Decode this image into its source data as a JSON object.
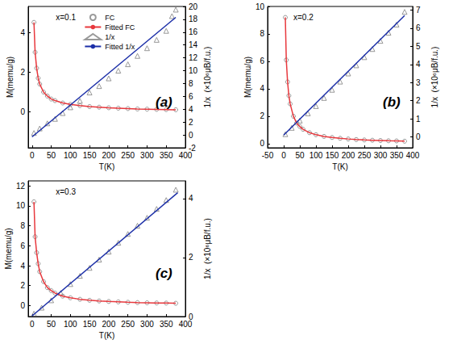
{
  "chart_data": [
    {
      "type": "scatter",
      "title": "(a)",
      "annotations": [
        "x=0.1"
      ],
      "x_label": "T(K)",
      "y_label": "M(memu/g)",
      "y2_label": "1/x  (×10⁶μB/f.u.)",
      "xlim": [
        -10,
        400
      ],
      "xticks": [
        0,
        50,
        100,
        150,
        200,
        250,
        300,
        350,
        400
      ],
      "ylim": [
        -1.8,
        5.3
      ],
      "yticks": [
        0,
        2,
        4
      ],
      "y2lim": [
        -2,
        20
      ],
      "y2ticks": [
        -2,
        0,
        2,
        4,
        6,
        8,
        10,
        12,
        14,
        16,
        18,
        20
      ],
      "grid": false,
      "legend": "upper left",
      "series": [
        {
          "name": "FC",
          "type": "scatter",
          "marker": "circle",
          "color": "#808080",
          "x": [
            5,
            8,
            12,
            16,
            20,
            30,
            40,
            50,
            60,
            80,
            100,
            125,
            150,
            175,
            200,
            225,
            250,
            275,
            300,
            325,
            350,
            375
          ],
          "values": [
            4.5,
            3.0,
            2.2,
            1.7,
            1.4,
            1.0,
            0.8,
            0.65,
            0.57,
            0.45,
            0.38,
            0.32,
            0.27,
            0.24,
            0.21,
            0.19,
            0.17,
            0.15,
            0.14,
            0.13,
            0.12,
            0.11
          ]
        },
        {
          "name": "Fitted FC",
          "type": "line",
          "line_style": "solid",
          "color": "#e8383d",
          "x": [
            5,
            8,
            12,
            16,
            20,
            30,
            40,
            50,
            60,
            80,
            100,
            125,
            150,
            175,
            200,
            225,
            250,
            275,
            300,
            325,
            350,
            375
          ],
          "values": [
            4.5,
            3.0,
            2.2,
            1.7,
            1.4,
            1.0,
            0.8,
            0.65,
            0.57,
            0.45,
            0.38,
            0.32,
            0.27,
            0.24,
            0.21,
            0.19,
            0.17,
            0.15,
            0.14,
            0.13,
            0.12,
            0.11
          ]
        },
        {
          "name": "1/x",
          "type": "scatter",
          "marker": "triangle",
          "color": "#808080",
          "axis": "y2",
          "x": [
            5,
            20,
            40,
            60,
            80,
            100,
            125,
            150,
            175,
            200,
            225,
            250,
            275,
            300,
            325,
            350,
            365,
            375
          ],
          "values": [
            0.3,
            1.0,
            1.8,
            2.5,
            3.4,
            4.3,
            5.3,
            6.6,
            7.6,
            8.8,
            10.0,
            11.0,
            12.3,
            13.5,
            14.8,
            16.2,
            18.5,
            19.5
          ]
        },
        {
          "name": "Fitted 1/x",
          "type": "line",
          "line_style": "solid",
          "color": "#1c2fa8",
          "axis": "y2",
          "x": [
            0,
            375
          ],
          "values": [
            -0.3,
            18.3
          ]
        }
      ]
    },
    {
      "type": "scatter",
      "title": "(b)",
      "annotations": [
        "x=0.2"
      ],
      "x_label": "T(K)",
      "y_label": "M(memu/g)",
      "y2_label": "1/x  (×10⁶μB/f.u.)",
      "xlim": [
        -50,
        400
      ],
      "xticks": [
        -50,
        0,
        50,
        100,
        150,
        200,
        250,
        300,
        350,
        400
      ],
      "ylim": [
        -0.3,
        10
      ],
      "yticks": [
        0,
        2,
        4,
        6,
        8,
        10
      ],
      "y2lim": [
        -0.6,
        7.2
      ],
      "y2ticks": [
        0,
        1,
        2,
        3,
        4,
        5,
        6,
        7
      ],
      "grid": false,
      "series": [
        {
          "name": "FC",
          "type": "scatter",
          "marker": "circle",
          "color": "#808080",
          "x": [
            5,
            8,
            12,
            16,
            20,
            30,
            40,
            50,
            60,
            80,
            100,
            125,
            150,
            175,
            200,
            225,
            250,
            275,
            300,
            325,
            350,
            375
          ],
          "values": [
            9.2,
            6.1,
            4.5,
            3.5,
            2.9,
            2.0,
            1.5,
            1.25,
            1.05,
            0.8,
            0.65,
            0.53,
            0.45,
            0.39,
            0.34,
            0.3,
            0.27,
            0.25,
            0.23,
            0.21,
            0.2,
            0.18
          ]
        },
        {
          "name": "Fitted FC",
          "type": "line",
          "line_style": "solid",
          "color": "#e8383d",
          "x": [
            5,
            8,
            12,
            16,
            20,
            30,
            40,
            50,
            60,
            80,
            100,
            125,
            150,
            175,
            200,
            225,
            250,
            275,
            300,
            325,
            350,
            375
          ],
          "values": [
            9.2,
            6.1,
            4.5,
            3.5,
            2.9,
            2.0,
            1.5,
            1.25,
            1.05,
            0.8,
            0.65,
            0.53,
            0.45,
            0.39,
            0.34,
            0.3,
            0.27,
            0.25,
            0.23,
            0.21,
            0.2,
            0.18
          ]
        },
        {
          "name": "1/x",
          "type": "scatter",
          "marker": "triangle",
          "color": "#808080",
          "axis": "y2",
          "x": [
            5,
            25,
            50,
            75,
            100,
            125,
            150,
            175,
            200,
            225,
            250,
            275,
            300,
            325,
            350,
            375
          ],
          "values": [
            0.15,
            0.5,
            0.9,
            1.3,
            1.7,
            2.15,
            2.6,
            3.05,
            3.5,
            3.95,
            4.4,
            4.85,
            5.3,
            5.75,
            6.2,
            6.9
          ]
        },
        {
          "name": "Fitted 1/x",
          "type": "line",
          "line_style": "solid",
          "color": "#1c2fa8",
          "axis": "y2",
          "x": [
            0,
            375
          ],
          "values": [
            0.1,
            6.7
          ]
        }
      ]
    },
    {
      "type": "scatter",
      "title": "(c)",
      "annotations": [
        "x=0.3"
      ],
      "x_label": "T(K)",
      "y_label": "M(memu/g)",
      "y2_label": "1/x  (×10⁶μB/f.u.)",
      "xlim": [
        -10,
        400
      ],
      "xticks": [
        0,
        50,
        100,
        150,
        200,
        250,
        300,
        350,
        400
      ],
      "ylim": [
        -1.1,
        12.5
      ],
      "yticks": [
        0,
        2,
        4,
        6,
        8,
        10,
        12
      ],
      "y2lim": [
        0,
        4.6
      ],
      "y2ticks": [
        0,
        2,
        4
      ],
      "grid": false,
      "series": [
        {
          "name": "FC",
          "type": "scatter",
          "marker": "circle",
          "color": "#808080",
          "x": [
            5,
            8,
            12,
            16,
            20,
            30,
            40,
            50,
            60,
            80,
            100,
            125,
            150,
            175,
            200,
            225,
            250,
            275,
            300,
            325,
            350,
            375
          ],
          "values": [
            10.4,
            6.9,
            5.3,
            4.2,
            3.4,
            2.4,
            1.8,
            1.5,
            1.25,
            0.95,
            0.78,
            0.63,
            0.53,
            0.46,
            0.41,
            0.37,
            0.33,
            0.3,
            0.28,
            0.26,
            0.25,
            0.23
          ]
        },
        {
          "name": "Fitted FC",
          "type": "line",
          "line_style": "solid",
          "color": "#e8383d",
          "x": [
            5,
            8,
            12,
            16,
            20,
            30,
            40,
            50,
            60,
            80,
            100,
            125,
            150,
            175,
            200,
            225,
            250,
            275,
            300,
            325,
            350,
            375
          ],
          "values": [
            10.4,
            6.9,
            5.3,
            4.2,
            3.4,
            2.4,
            1.8,
            1.5,
            1.25,
            0.95,
            0.78,
            0.63,
            0.53,
            0.46,
            0.41,
            0.37,
            0.33,
            0.3,
            0.28,
            0.26,
            0.25,
            0.23
          ]
        },
        {
          "name": "1/x",
          "type": "scatter",
          "marker": "triangle",
          "color": "#808080",
          "axis": "y2",
          "x": [
            5,
            25,
            50,
            75,
            100,
            125,
            150,
            175,
            200,
            225,
            250,
            275,
            300,
            325,
            350,
            375
          ],
          "values": [
            0.1,
            0.3,
            0.55,
            0.8,
            1.1,
            1.38,
            1.65,
            1.93,
            2.2,
            2.5,
            2.8,
            3.08,
            3.35,
            3.65,
            3.95,
            4.3
          ]
        },
        {
          "name": "Fitted 1/x",
          "type": "line",
          "line_style": "solid",
          "color": "#1c2fa8",
          "axis": "y2",
          "x": [
            0,
            380
          ],
          "values": [
            0.02,
            4.2
          ]
        }
      ]
    }
  ]
}
